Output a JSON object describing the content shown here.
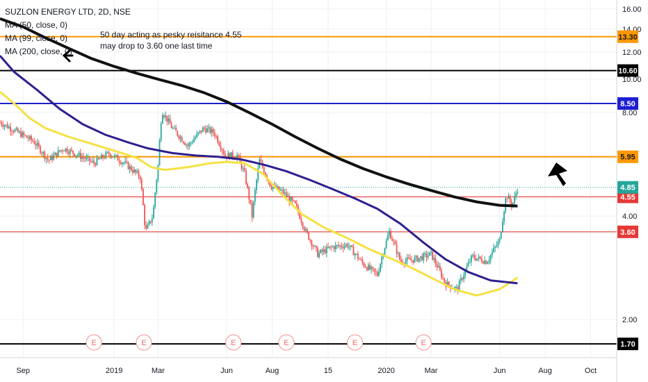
{
  "header": {
    "symbol_line": "SUZLON ENERGY LTD, 2D, NSE",
    "indicators": [
      "MA (50, close, 0)",
      "MA (99, close, 0)",
      "MA (200, close, 0)"
    ]
  },
  "annotation": {
    "line1": "50 day acting as pesky reisitance 4.55",
    "line2": "may drop to 3.60 one last time"
  },
  "colors": {
    "ma50": "#f5e142",
    "ma99": "#2e1f8f",
    "ma200": "#111111",
    "up": "#26a69a",
    "down": "#ef5350",
    "orange": "#ff9800",
    "blue": "#1e1ed4",
    "red": "#e53935",
    "black": "#000000"
  },
  "chart_data": {
    "type": "candlestick",
    "title": "SUZLON ENERGY LTD, 2D, NSE",
    "yscale": "log",
    "ylim": [
      1.55,
      17.0
    ],
    "y_ticks": [
      "16.00",
      "14.00",
      "12.00",
      "10.00",
      "8.00",
      "6.00",
      "4.00",
      "2.00"
    ],
    "y_tick_values": [
      16,
      14,
      12,
      10,
      8,
      6,
      4,
      2
    ],
    "x_ticks": [
      "Sep",
      "2019",
      "Mar",
      "Jun",
      "Aug",
      "15",
      "2020",
      "Mar",
      "Jun",
      "Aug",
      "Oct"
    ],
    "x_tick_dates": [
      "2018-09-01",
      "2019-01-01",
      "2019-03-01",
      "2019-06-01",
      "2019-08-01",
      "2019-10-15",
      "2020-01-01",
      "2020-03-01",
      "2020-06-01",
      "2020-08-01",
      "2020-10-01"
    ],
    "x_range": [
      "2018-08-01",
      "2020-11-05"
    ],
    "horizontal_levels": [
      {
        "value": 13.3,
        "label": "13.30",
        "color": "orange"
      },
      {
        "value": 10.6,
        "label": "10.60",
        "color": "black"
      },
      {
        "value": 8.5,
        "label": "8.50",
        "color": "blue"
      },
      {
        "value": 5.95,
        "label": "5.95",
        "color": "orange"
      },
      {
        "value": 4.55,
        "label": "4.55",
        "color": "red"
      },
      {
        "value": 3.6,
        "label": "3.60",
        "color": "red"
      },
      {
        "value": 1.7,
        "label": "1.70",
        "color": "black"
      }
    ],
    "last_price": {
      "value": 4.85,
      "label": "4.85"
    },
    "ma50": [
      [
        "2018-08-01",
        9.2
      ],
      [
        "2018-08-20",
        8.5
      ],
      [
        "2018-09-10",
        7.7
      ],
      [
        "2018-10-01",
        7.2
      ],
      [
        "2018-11-01",
        6.8
      ],
      [
        "2018-12-01",
        6.5
      ],
      [
        "2019-01-01",
        6.2
      ],
      [
        "2019-02-01",
        5.9
      ],
      [
        "2019-02-20",
        5.55
      ],
      [
        "2019-03-10",
        5.45
      ],
      [
        "2019-04-10",
        5.55
      ],
      [
        "2019-05-10",
        5.7
      ],
      [
        "2019-06-01",
        5.75
      ],
      [
        "2019-06-25",
        5.7
      ],
      [
        "2019-07-20",
        5.3
      ],
      [
        "2019-08-15",
        4.6
      ],
      [
        "2019-09-10",
        4.05
      ],
      [
        "2019-10-10",
        3.7
      ],
      [
        "2019-11-10",
        3.45
      ],
      [
        "2019-12-10",
        3.2
      ],
      [
        "2020-01-01",
        3.05
      ],
      [
        "2020-02-01",
        2.85
      ],
      [
        "2020-03-01",
        2.65
      ],
      [
        "2020-04-01",
        2.45
      ],
      [
        "2020-05-01",
        2.35
      ],
      [
        "2020-06-01",
        2.45
      ],
      [
        "2020-06-25",
        2.65
      ]
    ],
    "ma99": [
      [
        "2018-08-01",
        11.7
      ],
      [
        "2018-08-20",
        10.5
      ],
      [
        "2018-09-20",
        9.3
      ],
      [
        "2018-10-20",
        8.2
      ],
      [
        "2018-11-20",
        7.4
      ],
      [
        "2018-12-20",
        6.9
      ],
      [
        "2019-01-20",
        6.55
      ],
      [
        "2019-02-15",
        6.3
      ],
      [
        "2019-03-20",
        6.1
      ],
      [
        "2019-04-20",
        6.0
      ],
      [
        "2019-05-20",
        5.95
      ],
      [
        "2019-06-20",
        5.85
      ],
      [
        "2019-07-20",
        5.65
      ],
      [
        "2019-08-20",
        5.4
      ],
      [
        "2019-09-20",
        5.1
      ],
      [
        "2019-10-20",
        4.8
      ],
      [
        "2019-11-20",
        4.5
      ],
      [
        "2019-12-20",
        4.2
      ],
      [
        "2020-01-20",
        3.8
      ],
      [
        "2020-02-20",
        3.35
      ],
      [
        "2020-03-20",
        3.0
      ],
      [
        "2020-04-20",
        2.75
      ],
      [
        "2020-05-20",
        2.6
      ],
      [
        "2020-06-25",
        2.55
      ]
    ],
    "ma200": [
      [
        "2018-08-01",
        15.0
      ],
      [
        "2018-09-01",
        14.2
      ],
      [
        "2018-10-01",
        13.2
      ],
      [
        "2018-11-01",
        12.3
      ],
      [
        "2018-12-01",
        11.5
      ],
      [
        "2019-01-01",
        10.9
      ],
      [
        "2019-02-01",
        10.4
      ],
      [
        "2019-03-01",
        10.0
      ],
      [
        "2019-04-01",
        9.6
      ],
      [
        "2019-05-01",
        9.15
      ],
      [
        "2019-06-01",
        8.6
      ],
      [
        "2019-07-01",
        8.0
      ],
      [
        "2019-08-01",
        7.4
      ],
      [
        "2019-09-01",
        6.8
      ],
      [
        "2019-10-01",
        6.3
      ],
      [
        "2019-11-01",
        5.85
      ],
      [
        "2019-12-01",
        5.5
      ],
      [
        "2020-01-01",
        5.2
      ],
      [
        "2020-02-01",
        4.95
      ],
      [
        "2020-03-01",
        4.75
      ],
      [
        "2020-04-01",
        4.55
      ],
      [
        "2020-05-01",
        4.4
      ],
      [
        "2020-06-01",
        4.3
      ],
      [
        "2020-06-25",
        4.28
      ]
    ],
    "price_path": [
      [
        "2018-08-01",
        7.5
      ],
      [
        "2018-08-25",
        7.0
      ],
      [
        "2018-09-15",
        6.6
      ],
      [
        "2018-10-05",
        5.8
      ],
      [
        "2018-10-25",
        6.3
      ],
      [
        "2018-11-15",
        6.0
      ],
      [
        "2018-12-05",
        5.7
      ],
      [
        "2018-12-25",
        6.1
      ],
      [
        "2019-01-15",
        5.7
      ],
      [
        "2019-02-05",
        5.2
      ],
      [
        "2019-02-12",
        3.6
      ],
      [
        "2019-02-22",
        4.0
      ],
      [
        "2019-03-01",
        5.6
      ],
      [
        "2019-03-06",
        8.1
      ],
      [
        "2019-03-20",
        7.2
      ],
      [
        "2019-04-10",
        6.4
      ],
      [
        "2019-05-01",
        7.2
      ],
      [
        "2019-05-15",
        7.0
      ],
      [
        "2019-05-30",
        6.0
      ],
      [
        "2019-06-15",
        6.0
      ],
      [
        "2019-06-25",
        5.3
      ],
      [
        "2019-07-05",
        4.0
      ],
      [
        "2019-07-15",
        5.8
      ],
      [
        "2019-07-30",
        4.9
      ],
      [
        "2019-08-15",
        4.7
      ],
      [
        "2019-09-01",
        4.3
      ],
      [
        "2019-09-15",
        3.6
      ],
      [
        "2019-10-01",
        3.1
      ],
      [
        "2019-10-20",
        3.25
      ],
      [
        "2019-11-10",
        3.3
      ],
      [
        "2019-12-01",
        2.9
      ],
      [
        "2019-12-20",
        2.7
      ],
      [
        "2020-01-05",
        3.6
      ],
      [
        "2020-01-20",
        2.95
      ],
      [
        "2020-02-10",
        3.0
      ],
      [
        "2020-03-01",
        3.1
      ],
      [
        "2020-03-20",
        2.55
      ],
      [
        "2020-04-05",
        2.45
      ],
      [
        "2020-04-25",
        3.05
      ],
      [
        "2020-05-15",
        2.95
      ],
      [
        "2020-06-01",
        3.4
      ],
      [
        "2020-06-10",
        4.6
      ],
      [
        "2020-06-18",
        4.3
      ],
      [
        "2020-06-25",
        4.8
      ]
    ],
    "event_markers": {
      "label": "E",
      "dates": [
        "2018-12-05",
        "2019-02-10",
        "2019-06-10",
        "2019-08-20",
        "2019-11-20",
        "2020-02-20"
      ]
    }
  }
}
